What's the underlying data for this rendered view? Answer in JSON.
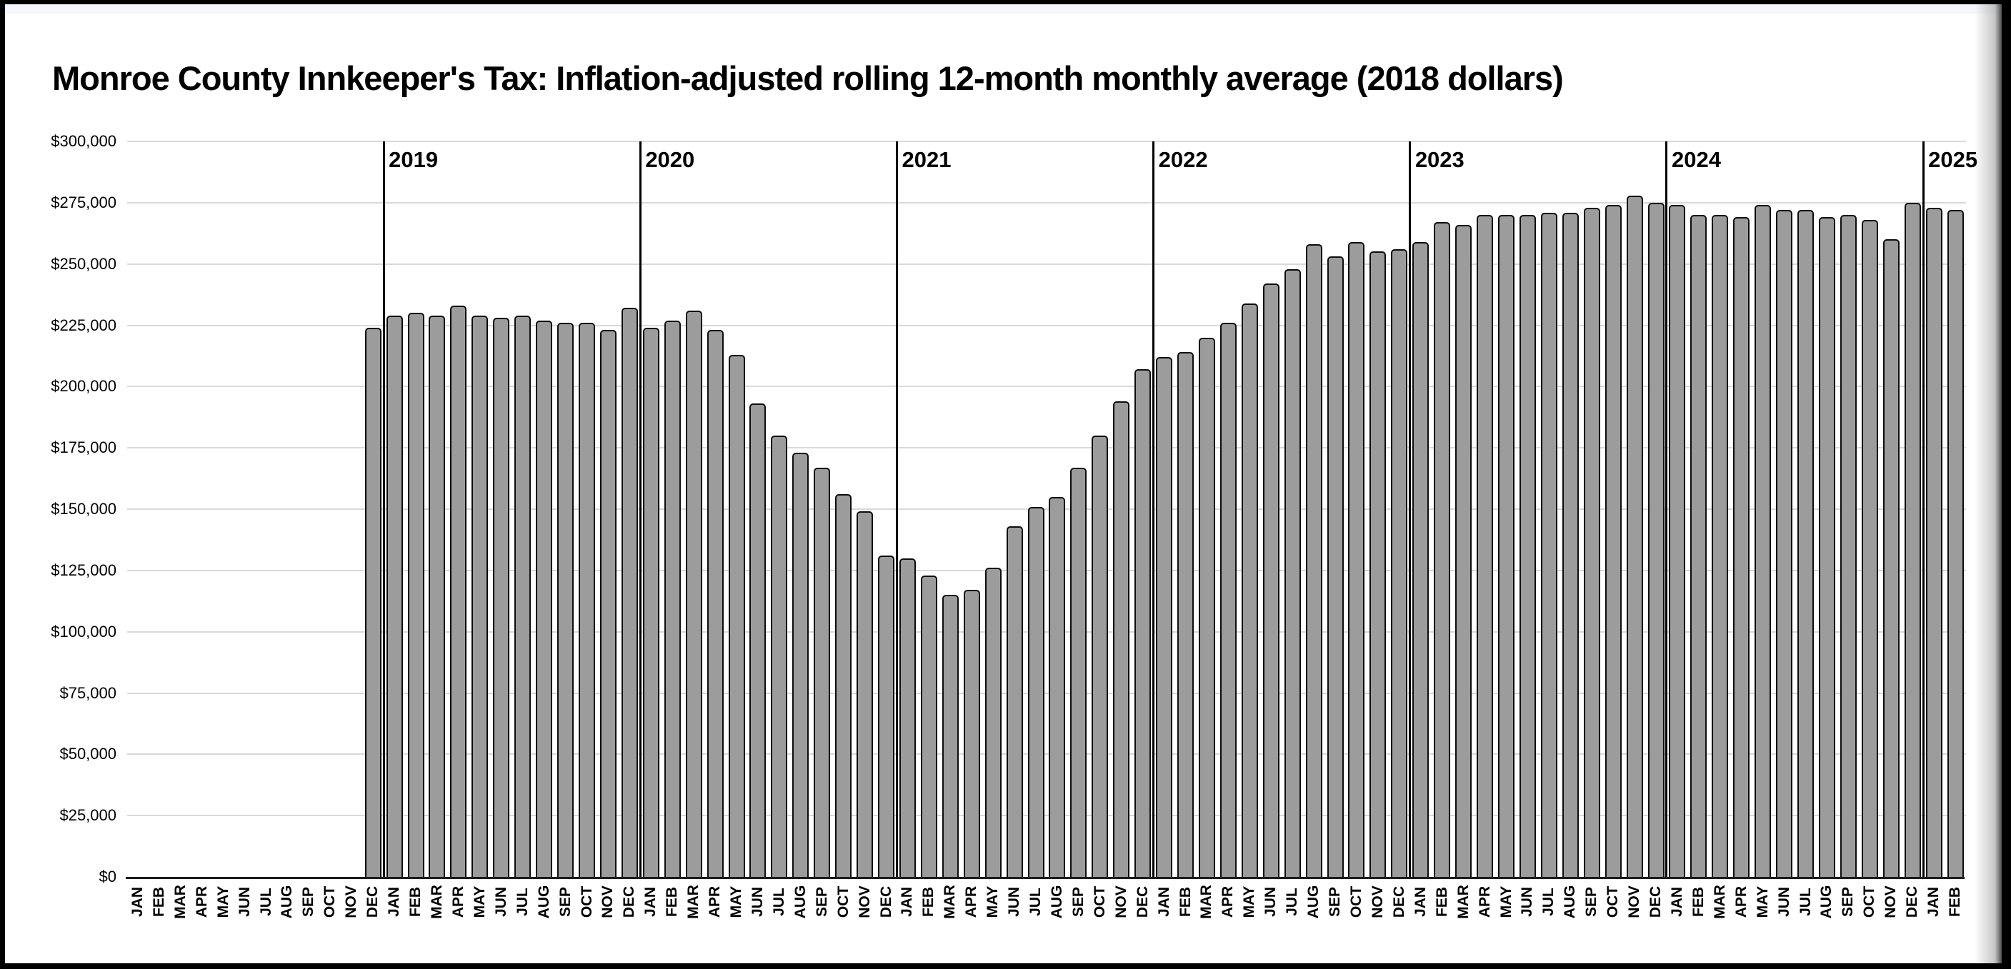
{
  "frame": {
    "border_color": "#000000",
    "top_strip_color": "#f6f7fa",
    "page_background": "#ffffff"
  },
  "chart_data": {
    "type": "bar",
    "title": "Monroe County Innkeeper's Tax: Inflation-adjusted rolling 12-month monthly average (2018 dollars)",
    "xlabel": "",
    "ylabel": "",
    "ylim": [
      0,
      300000
    ],
    "y_tick_step": 25000,
    "y_tick_labels": [
      "$0",
      "$25,000",
      "$50,000",
      "$75,000",
      "$100,000",
      "$125,000",
      "$150,000",
      "$175,000",
      "$200,000",
      "$225,000",
      "$250,000",
      "$275,000",
      "$300,000"
    ],
    "grid": true,
    "legend": "none",
    "bar_color": "#9c9c9c",
    "bar_border_color": "#0d0d0d",
    "gridline_color": "#d9d9d9",
    "axis_color": "#1c1c1c",
    "year_line_color": "#000000",
    "x_labels": [
      "JAN",
      "FEB",
      "MAR",
      "APR",
      "MAY",
      "JUN",
      "JUL",
      "AUG",
      "SEP",
      "OCT",
      "NOV",
      "DEC",
      "JAN",
      "FEB",
      "MAR",
      "APR",
      "MAY",
      "JUN",
      "JUL",
      "AUG",
      "SEP",
      "OCT",
      "NOV",
      "DEC",
      "JAN",
      "FEB",
      "MAR",
      "APR",
      "MAY",
      "JUN",
      "JUL",
      "AUG",
      "SEP",
      "OCT",
      "NOV",
      "DEC",
      "JAN",
      "FEB",
      "MAR",
      "APR",
      "MAY",
      "JUN",
      "JUL",
      "AUG",
      "SEP",
      "OCT",
      "NOV",
      "DEC",
      "JAN",
      "FEB",
      "MAR",
      "APR",
      "MAY",
      "JUN",
      "JUL",
      "AUG",
      "SEP",
      "OCT",
      "NOV",
      "DEC",
      "JAN",
      "FEB",
      "MAR",
      "APR",
      "MAY",
      "JUN",
      "JUL",
      "AUG",
      "SEP",
      "OCT",
      "NOV",
      "DEC",
      "JAN",
      "FEB",
      "MAR",
      "APR",
      "MAY",
      "JUN",
      "JUL",
      "AUG",
      "SEP",
      "OCT",
      "NOV",
      "DEC",
      "JAN",
      "FEB"
    ],
    "values": [
      null,
      null,
      null,
      null,
      null,
      null,
      null,
      null,
      null,
      null,
      null,
      224000,
      229000,
      230000,
      229000,
      233000,
      229000,
      228000,
      229000,
      227000,
      226000,
      226000,
      223000,
      232000,
      224000,
      227000,
      231000,
      223000,
      213000,
      193000,
      180000,
      173000,
      167000,
      156000,
      149000,
      131000,
      130000,
      123000,
      115000,
      117000,
      126000,
      143000,
      151000,
      155000,
      167000,
      180000,
      194000,
      207000,
      212000,
      214000,
      220000,
      226000,
      234000,
      242000,
      248000,
      258000,
      253000,
      259000,
      255000,
      256000,
      259000,
      267000,
      266000,
      270000,
      270000,
      270000,
      271000,
      271000,
      273000,
      274000,
      278000,
      275000,
      274000,
      270000,
      270000,
      269000,
      274000,
      272000,
      272000,
      269000,
      270000,
      268000,
      260000,
      275000,
      273000,
      272000
    ],
    "year_markers": [
      {
        "label": "2019",
        "month_index": 12
      },
      {
        "label": "2020",
        "month_index": 24
      },
      {
        "label": "2021",
        "month_index": 36
      },
      {
        "label": "2022",
        "month_index": 48
      },
      {
        "label": "2023",
        "month_index": 60
      },
      {
        "label": "2024",
        "month_index": 72
      },
      {
        "label": "2025",
        "month_index": 84
      }
    ]
  }
}
